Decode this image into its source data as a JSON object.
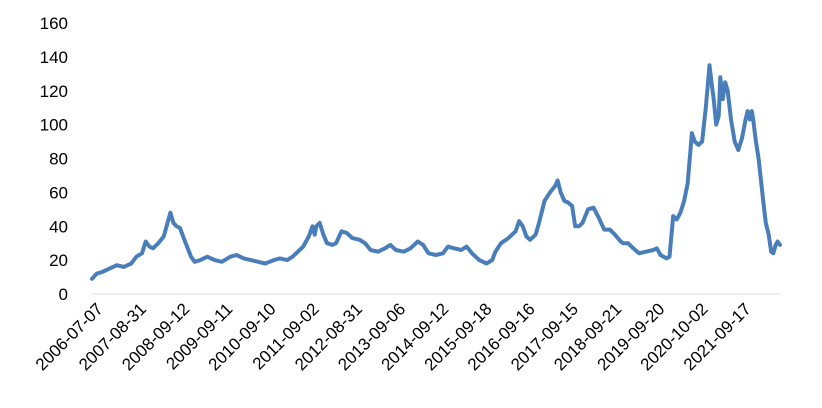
{
  "chart_data": {
    "type": "line",
    "title": "",
    "xlabel": "",
    "ylabel": "",
    "ylim": [
      0,
      160
    ],
    "grid": false,
    "legend": "none",
    "y_ticks": [
      0,
      20,
      40,
      60,
      80,
      100,
      120,
      140,
      160
    ],
    "x_tick_labels": [
      "2006-07-07",
      "2007-08-31",
      "2008-09-12",
      "2009-09-11",
      "2010-09-10",
      "2011-09-02",
      "2012-08-31",
      "2013-09-06",
      "2014-09-12",
      "2015-09-18",
      "2016-09-16",
      "2017-09-15",
      "2018-09-21",
      "2019-09-20",
      "2020-10-02",
      "2021-09-17"
    ],
    "x_range": [
      "2006-07-07",
      "2022-04-30"
    ],
    "series": [
      {
        "color": "#4a7ebb",
        "points": [
          [
            "2006-07-07",
            9
          ],
          [
            "2006-08-15",
            12
          ],
          [
            "2006-10-01",
            13
          ],
          [
            "2006-12-01",
            15
          ],
          [
            "2007-02-01",
            17
          ],
          [
            "2007-04-01",
            16
          ],
          [
            "2007-06-01",
            18
          ],
          [
            "2007-07-15",
            22
          ],
          [
            "2007-08-31",
            24
          ],
          [
            "2007-10-01",
            31
          ],
          [
            "2007-11-01",
            28
          ],
          [
            "2007-12-01",
            27
          ],
          [
            "2008-01-15",
            30
          ],
          [
            "2008-03-01",
            34
          ],
          [
            "2008-04-01",
            42
          ],
          [
            "2008-04-25",
            48
          ],
          [
            "2008-05-20",
            42
          ],
          [
            "2008-06-15",
            40
          ],
          [
            "2008-07-15",
            39
          ],
          [
            "2008-08-15",
            33
          ],
          [
            "2008-09-12",
            28
          ],
          [
            "2008-10-15",
            22
          ],
          [
            "2008-11-15",
            19
          ],
          [
            "2009-01-01",
            20
          ],
          [
            "2009-03-01",
            22
          ],
          [
            "2009-05-01",
            20
          ],
          [
            "2009-07-01",
            19
          ],
          [
            "2009-09-11",
            22
          ],
          [
            "2009-11-01",
            23
          ],
          [
            "2010-01-01",
            21
          ],
          [
            "2010-03-01",
            20
          ],
          [
            "2010-05-01",
            19
          ],
          [
            "2010-07-01",
            18
          ],
          [
            "2010-09-10",
            20
          ],
          [
            "2010-11-01",
            21
          ],
          [
            "2011-01-01",
            20
          ],
          [
            "2011-02-15",
            22
          ],
          [
            "2011-04-01",
            25
          ],
          [
            "2011-05-15",
            28
          ],
          [
            "2011-07-01",
            34
          ],
          [
            "2011-08-01",
            40
          ],
          [
            "2011-08-20",
            35
          ],
          [
            "2011-09-02",
            40
          ],
          [
            "2011-10-01",
            42
          ],
          [
            "2011-11-01",
            35
          ],
          [
            "2011-12-01",
            30
          ],
          [
            "2012-01-15",
            29
          ],
          [
            "2012-02-15",
            30
          ],
          [
            "2012-04-01",
            37
          ],
          [
            "2012-05-15",
            36
          ],
          [
            "2012-07-01",
            33
          ],
          [
            "2012-08-31",
            32
          ],
          [
            "2012-10-15",
            30
          ],
          [
            "2012-12-01",
            26
          ],
          [
            "2013-02-01",
            25
          ],
          [
            "2013-04-01",
            27
          ],
          [
            "2013-05-15",
            29
          ],
          [
            "2013-07-01",
            26
          ],
          [
            "2013-09-06",
            25
          ],
          [
            "2013-11-01",
            27
          ],
          [
            "2014-01-01",
            31
          ],
          [
            "2014-02-15",
            29
          ],
          [
            "2014-04-01",
            24
          ],
          [
            "2014-06-01",
            23
          ],
          [
            "2014-08-01",
            24
          ],
          [
            "2014-09-12",
            28
          ],
          [
            "2014-11-01",
            27
          ],
          [
            "2015-01-01",
            26
          ],
          [
            "2015-02-15",
            28
          ],
          [
            "2015-04-01",
            24
          ],
          [
            "2015-06-01",
            20
          ],
          [
            "2015-08-01",
            18
          ],
          [
            "2015-09-18",
            20
          ],
          [
            "2015-10-15",
            25
          ],
          [
            "2015-12-01",
            30
          ],
          [
            "2016-02-01",
            33
          ],
          [
            "2016-04-01",
            37
          ],
          [
            "2016-05-01",
            43
          ],
          [
            "2016-06-01",
            40
          ],
          [
            "2016-07-01",
            34
          ],
          [
            "2016-08-01",
            32
          ],
          [
            "2016-09-16",
            35
          ],
          [
            "2016-10-15",
            42
          ],
          [
            "2016-12-01",
            55
          ],
          [
            "2017-01-15",
            60
          ],
          [
            "2017-03-01",
            64
          ],
          [
            "2017-03-20",
            67
          ],
          [
            "2017-04-15",
            60
          ],
          [
            "2017-05-15",
            55
          ],
          [
            "2017-06-15",
            54
          ],
          [
            "2017-07-20",
            52
          ],
          [
            "2017-08-15",
            40
          ],
          [
            "2017-09-15",
            40
          ],
          [
            "2017-10-15",
            42
          ],
          [
            "2017-12-01",
            50
          ],
          [
            "2018-01-15",
            51
          ],
          [
            "2018-03-01",
            45
          ],
          [
            "2018-04-15",
            38
          ],
          [
            "2018-06-01",
            38
          ],
          [
            "2018-07-15",
            35
          ],
          [
            "2018-09-01",
            31
          ],
          [
            "2018-09-21",
            30
          ],
          [
            "2018-11-01",
            30
          ],
          [
            "2018-12-15",
            27
          ],
          [
            "2019-02-01",
            24
          ],
          [
            "2019-04-01",
            25
          ],
          [
            "2019-06-01",
            26
          ],
          [
            "2019-07-01",
            27
          ],
          [
            "2019-08-01",
            23
          ],
          [
            "2019-09-20",
            21
          ],
          [
            "2019-10-15",
            22
          ],
          [
            "2019-11-15",
            46
          ],
          [
            "2019-12-15",
            44
          ],
          [
            "2020-01-15",
            48
          ],
          [
            "2020-02-15",
            55
          ],
          [
            "2020-03-15",
            65
          ],
          [
            "2020-04-20",
            95
          ],
          [
            "2020-05-15",
            90
          ],
          [
            "2020-06-15",
            88
          ],
          [
            "2020-07-15",
            90
          ],
          [
            "2020-08-15",
            110
          ],
          [
            "2020-09-15",
            135
          ],
          [
            "2020-10-02",
            125
          ],
          [
            "2020-10-20",
            115
          ],
          [
            "2020-11-10",
            100
          ],
          [
            "2020-12-01",
            105
          ],
          [
            "2020-12-15",
            128
          ],
          [
            "2021-01-05",
            115
          ],
          [
            "2021-01-25",
            125
          ],
          [
            "2021-02-15",
            120
          ],
          [
            "2021-03-15",
            103
          ],
          [
            "2021-04-15",
            90
          ],
          [
            "2021-05-15",
            85
          ],
          [
            "2021-06-15",
            92
          ],
          [
            "2021-07-15",
            103
          ],
          [
            "2021-08-01",
            108
          ],
          [
            "2021-08-20",
            103
          ],
          [
            "2021-09-05",
            108
          ],
          [
            "2021-09-17",
            103
          ],
          [
            "2021-10-10",
            90
          ],
          [
            "2021-11-01",
            80
          ],
          [
            "2021-11-20",
            68
          ],
          [
            "2021-12-10",
            55
          ],
          [
            "2022-01-01",
            42
          ],
          [
            "2022-01-25",
            35
          ],
          [
            "2022-02-15",
            25
          ],
          [
            "2022-03-05",
            24
          ],
          [
            "2022-03-25",
            29
          ],
          [
            "2022-04-10",
            31
          ],
          [
            "2022-04-30",
            29
          ]
        ]
      }
    ]
  }
}
